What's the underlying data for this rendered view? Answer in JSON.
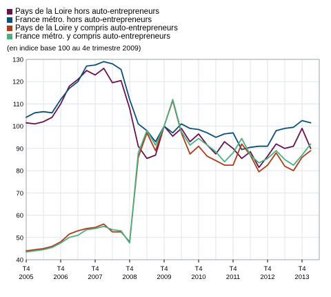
{
  "note": "(en indice base 100 au 4e trimestre 2009)",
  "chart_data": {
    "type": "line",
    "xlabel": "",
    "ylabel": "",
    "ylim": [
      40,
      130
    ],
    "yticks": [
      40,
      50,
      60,
      70,
      80,
      90,
      100,
      110,
      120,
      130
    ],
    "xtick_labels": [
      {
        "quarter": "T4",
        "year": "2005"
      },
      {
        "quarter": "T4",
        "year": "2006"
      },
      {
        "quarter": "T4",
        "year": "2007"
      },
      {
        "quarter": "T4",
        "year": "2008"
      },
      {
        "quarter": "T4",
        "year": "2009"
      },
      {
        "quarter": "T4",
        "year": "2010"
      },
      {
        "quarter": "T4",
        "year": "2011"
      },
      {
        "quarter": "T4",
        "year": "2012"
      },
      {
        "quarter": "T4",
        "year": "2013"
      }
    ],
    "x": [
      "2005-T4",
      "2006-T1",
      "2006-T2",
      "2006-T3",
      "2006-T4",
      "2007-T1",
      "2007-T2",
      "2007-T3",
      "2007-T4",
      "2008-T1",
      "2008-T2",
      "2008-T3",
      "2008-T4",
      "2009-T1",
      "2009-T2",
      "2009-T3",
      "2009-T4",
      "2010-T1",
      "2010-T2",
      "2010-T3",
      "2010-T4",
      "2011-T1",
      "2011-T2",
      "2011-T3",
      "2011-T4",
      "2012-T1",
      "2012-T2",
      "2012-T3",
      "2012-T4",
      "2013-T1",
      "2013-T2",
      "2013-T3",
      "2013-T4",
      "2014-T1",
      "2014-T2"
    ],
    "grid": true,
    "legend_position": "top-left",
    "series": [
      {
        "name": "Pays de la Loire hors auto-entrepreneurs",
        "color": "#6a1050",
        "values": [
          101.5,
          101,
          102,
          104,
          110,
          118,
          121,
          125,
          123,
          126,
          119.5,
          120.5,
          108,
          91,
          85.5,
          87,
          100,
          95.5,
          99,
          93,
          96.5,
          91.5,
          87.5,
          93,
          90,
          85.5,
          88.5,
          81.5,
          86.5,
          92,
          90,
          91,
          99,
          90,
          null
        ]
      },
      {
        "name": "France métro. hors auto-entrepreneurs",
        "color": "#0b4f7a",
        "values": [
          104,
          106,
          106.5,
          106,
          112,
          117,
          120,
          127,
          127.5,
          129,
          128,
          125.5,
          112,
          101,
          98,
          93,
          100,
          97,
          101,
          99,
          98.5,
          97,
          95,
          96.5,
          97,
          89.5,
          90.5,
          91,
          91,
          98,
          99,
          99.5,
          102.5,
          101.5,
          null
        ]
      },
      {
        "name": "Pays de la Loire y compris auto-entrepreneurs",
        "color": "#b23a1a",
        "values": [
          44,
          44.5,
          45,
          46,
          48,
          51.5,
          53,
          54,
          54.5,
          56,
          52.5,
          52.5,
          48,
          86,
          97,
          89,
          100,
          111.5,
          97,
          87.5,
          91,
          86.5,
          84.5,
          82.5,
          82.5,
          92,
          87,
          79.5,
          82.5,
          88,
          82,
          80,
          86,
          89,
          null
        ]
      },
      {
        "name": "France métro. y compris auto-entrepreneurs",
        "color": "#4caf7e",
        "values": [
          43.5,
          44,
          44.5,
          45.5,
          47.5,
          50,
          51,
          53.5,
          54,
          55,
          53.5,
          53,
          47.5,
          88,
          98,
          91.5,
          100,
          112,
          97.5,
          91.5,
          94.5,
          91.5,
          88.5,
          84,
          88,
          94.5,
          87,
          83.5,
          85.5,
          89,
          85,
          82.5,
          87,
          92,
          null
        ]
      }
    ]
  }
}
